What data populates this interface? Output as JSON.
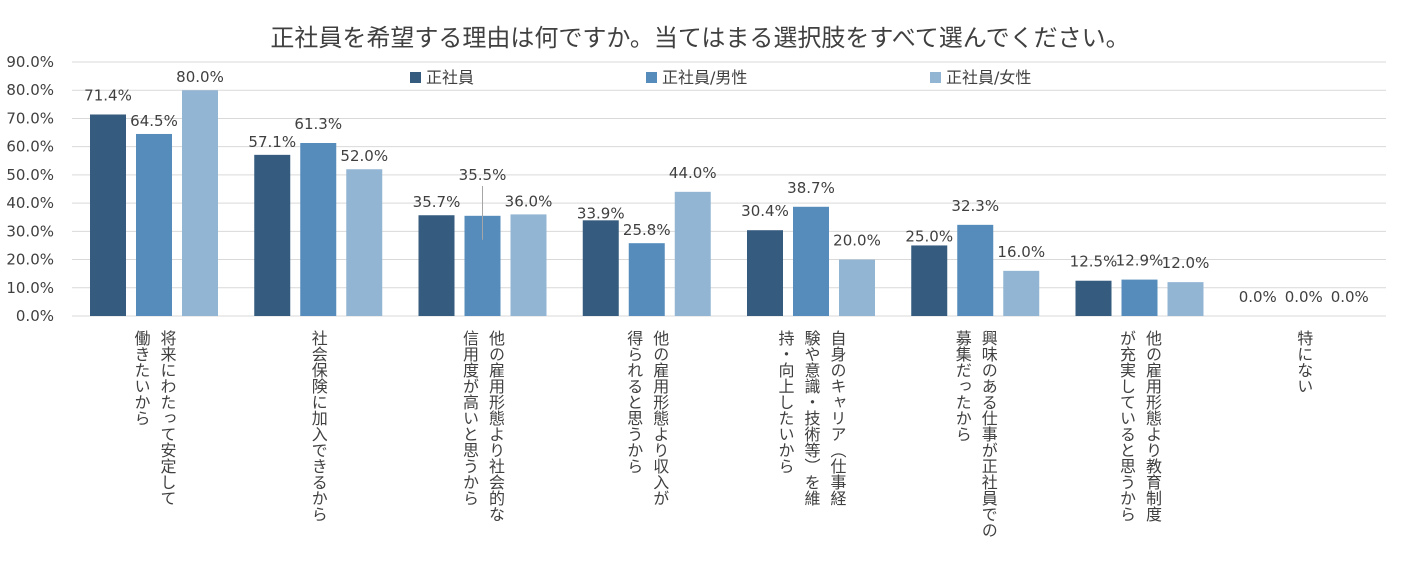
{
  "chart_data": {
    "type": "bar",
    "title": "正社員を希望する理由は何ですか。当てはまる選択肢をすべて選んでください。",
    "xlabel": "",
    "ylabel": "",
    "ylim": [
      0,
      90
    ],
    "y_ticks": [
      "0.0%",
      "10.0%",
      "20.0%",
      "30.0%",
      "40.0%",
      "50.0%",
      "60.0%",
      "70.0%",
      "80.0%",
      "90.0%"
    ],
    "y_tick_values": [
      0,
      10,
      20,
      30,
      40,
      50,
      60,
      70,
      80,
      90
    ],
    "grid": true,
    "legend_position": "top",
    "categories": [
      [
        "将来にわたって安定して",
        "働きたいから"
      ],
      [
        "社会保険に加入できるから"
      ],
      [
        "他の雇用形態より社会的な",
        "信用度が高いと思うから"
      ],
      [
        "他の雇用形態より収入が",
        "得られると思うから"
      ],
      [
        "自身のキャリア（仕事経",
        "験や意識・技術等）を維",
        "持・向上したいから"
      ],
      [
        "興味のある仕事が正社員での",
        "募集だったから"
      ],
      [
        "他の雇用形態より教育制度",
        "が充実していると思うから"
      ],
      [
        "特にない"
      ]
    ],
    "series": [
      {
        "name": "正社員",
        "color": "#355b7f",
        "values": [
          71.4,
          57.1,
          35.7,
          33.9,
          30.4,
          25.0,
          12.5,
          0.0
        ],
        "labels": [
          "71.4%",
          "57.1%",
          "35.7%",
          "33.9%",
          "30.4%",
          "25.0%",
          "12.5%",
          "0.0%"
        ]
      },
      {
        "name": "正社員/男性",
        "color": "#558cbb",
        "values": [
          64.5,
          61.3,
          35.5,
          25.8,
          38.7,
          32.3,
          12.9,
          0.0
        ],
        "labels": [
          "64.5%",
          "61.3%",
          "35.5%",
          "25.8%",
          "38.7%",
          "32.3%",
          "12.9%",
          "0.0%"
        ]
      },
      {
        "name": "正社員/女性",
        "color": "#93b5d4",
        "values": [
          80.0,
          52.0,
          36.0,
          44.0,
          20.0,
          16.0,
          12.0,
          0.0
        ],
        "labels": [
          "80.0%",
          "52.0%",
          "36.0%",
          "44.0%",
          "20.0%",
          "16.0%",
          "12.0%",
          "0.0%"
        ]
      }
    ]
  }
}
